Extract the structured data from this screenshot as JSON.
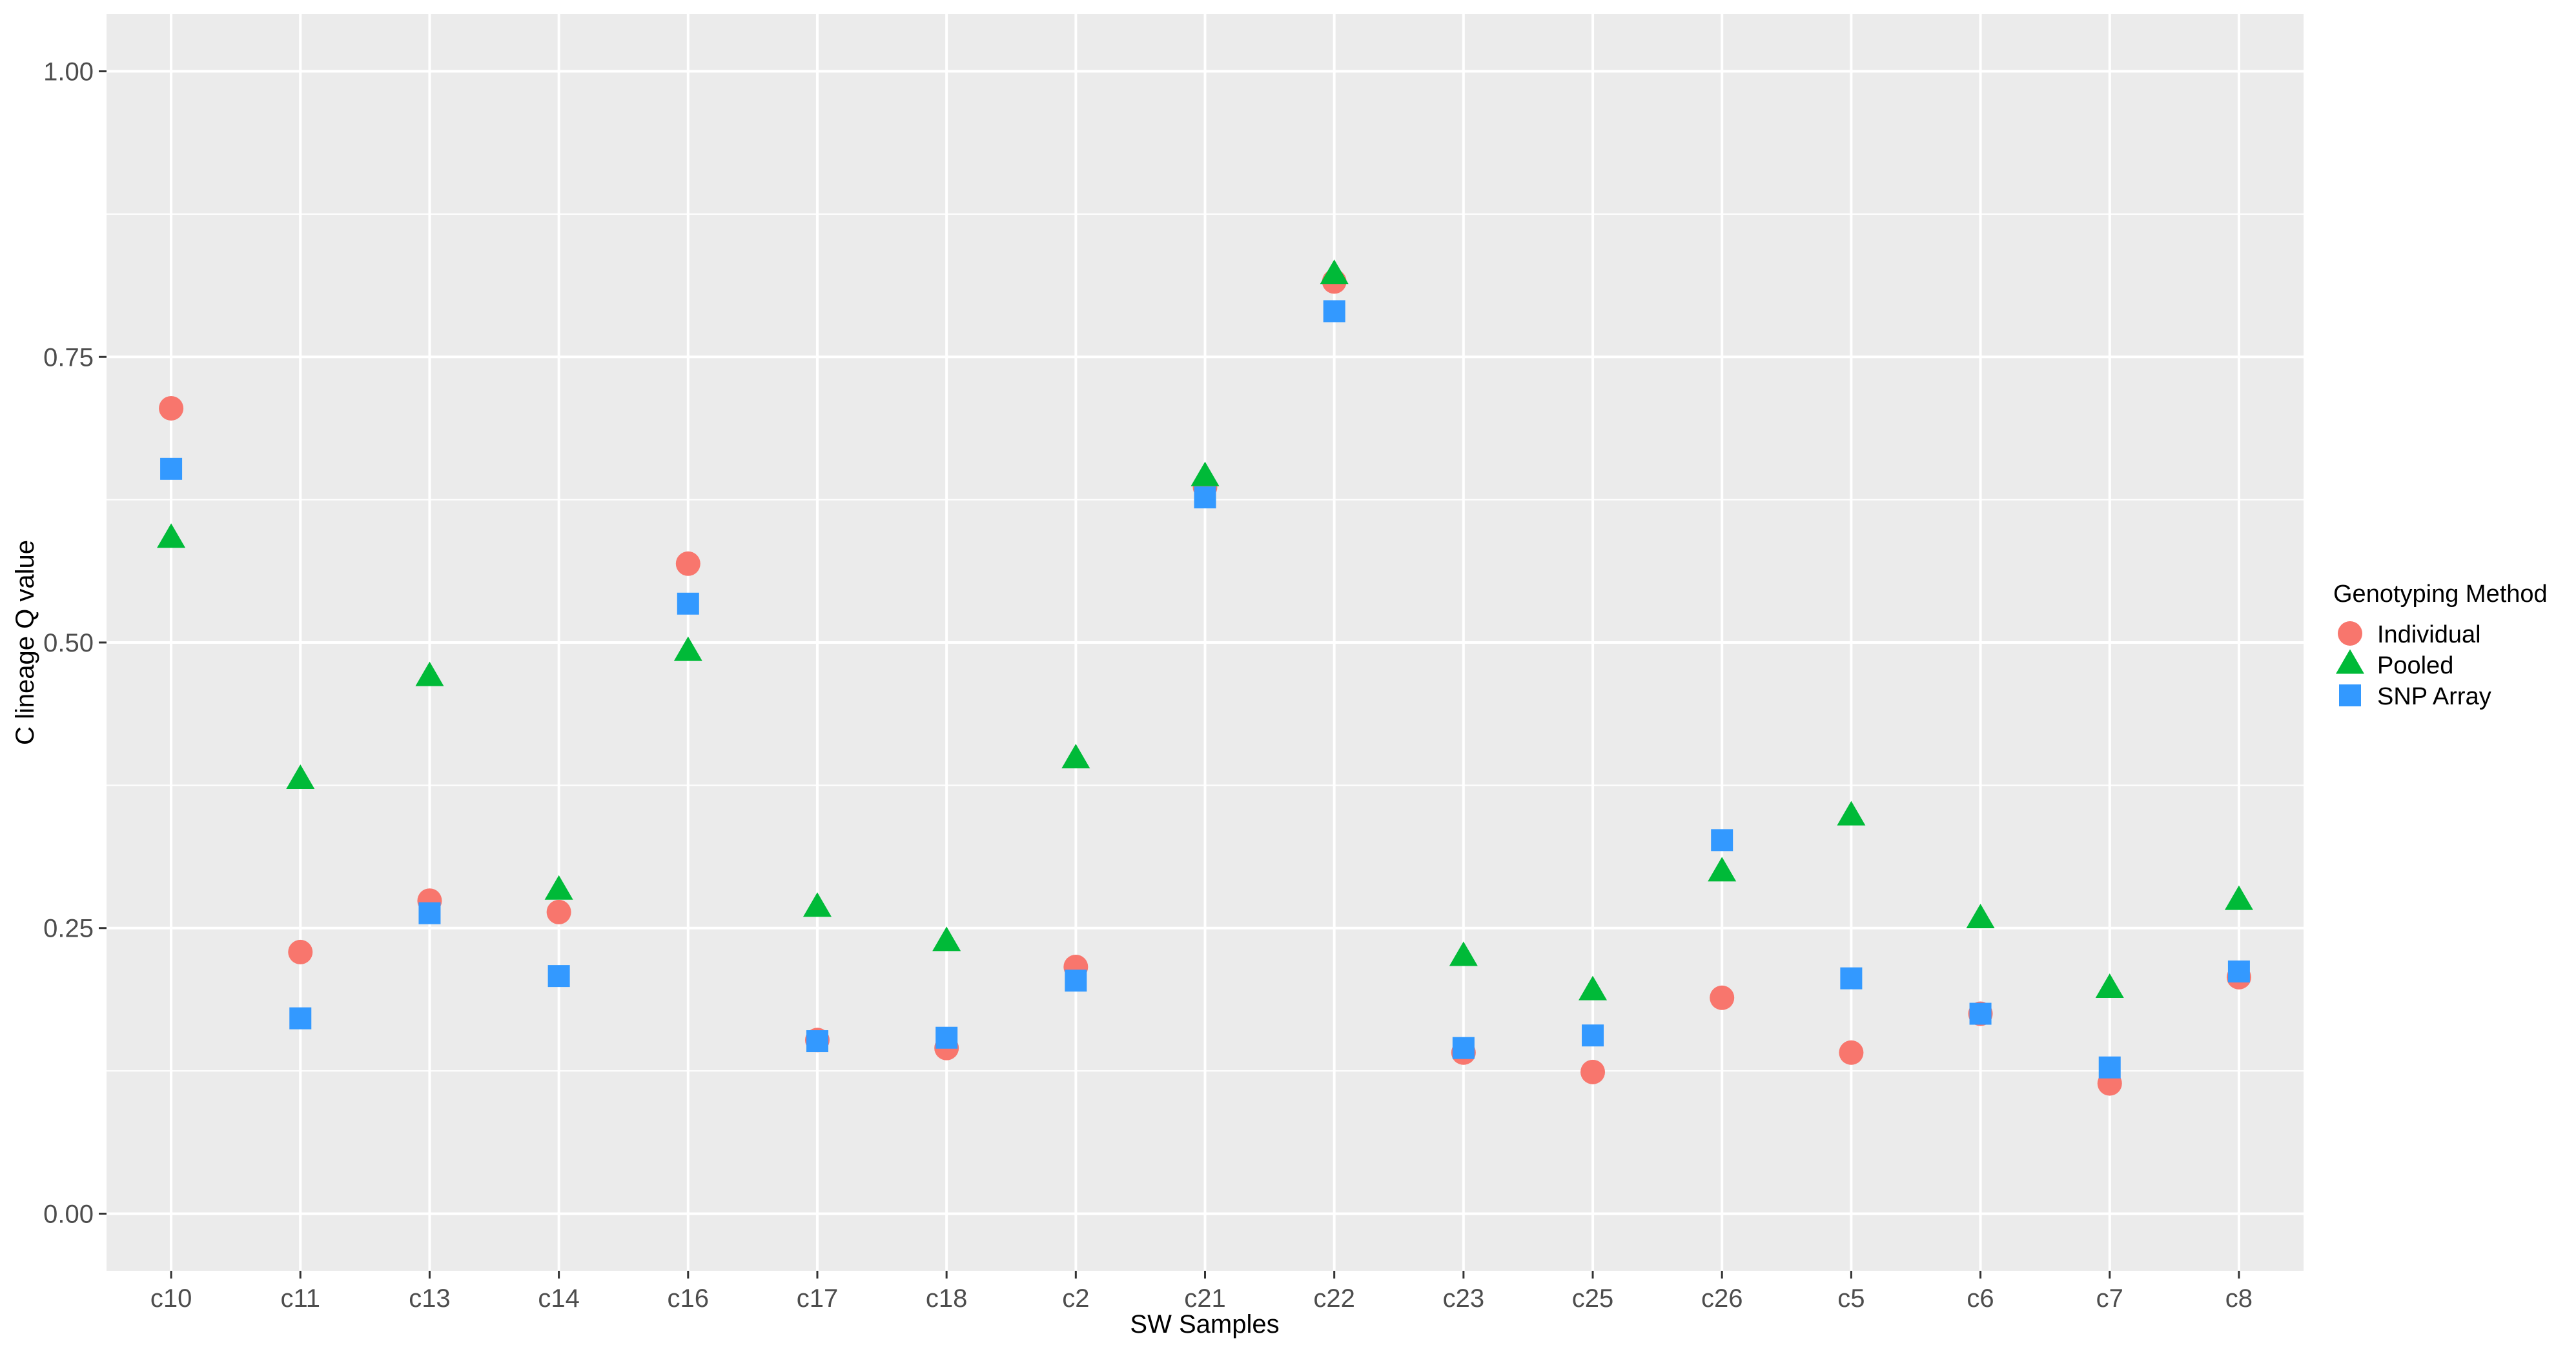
{
  "chart_data": {
    "type": "scatter",
    "xlabel": "SW Samples",
    "ylabel": "C lineage Q value",
    "ylim": [
      -0.05,
      1.05
    ],
    "yticks": [
      0.0,
      0.25,
      0.5,
      0.75,
      1.0
    ],
    "ytick_labels": [
      "0.00",
      "0.25",
      "0.50",
      "0.75",
      "1.00"
    ],
    "categories": [
      "c10",
      "c11",
      "c13",
      "c14",
      "c16",
      "c17",
      "c18",
      "c2",
      "c21",
      "c22",
      "c23",
      "c25",
      "c26",
      "c5",
      "c6",
      "c7",
      "c8"
    ],
    "grid": true,
    "legend": {
      "title": "Genotyping Method",
      "placement": "right"
    },
    "series": [
      {
        "name": "Individual",
        "marker": "circle",
        "color": "#F8766D",
        "values": [
          0.705,
          0.229,
          0.274,
          0.264,
          0.569,
          0.152,
          0.145,
          0.216,
          0.636,
          0.816,
          0.141,
          0.124,
          0.189,
          0.141,
          0.175,
          0.114,
          0.207
        ]
      },
      {
        "name": "Pooled",
        "marker": "triangle",
        "color": "#00BA38",
        "values": [
          0.591,
          0.38,
          0.47,
          0.283,
          0.492,
          0.268,
          0.238,
          0.398,
          0.645,
          0.822,
          0.225,
          0.195,
          0.299,
          0.348,
          0.258,
          0.197,
          0.274
        ]
      },
      {
        "name": "SNP Array",
        "marker": "square",
        "color": "#3399FF",
        "values": [
          0.652,
          0.171,
          0.263,
          0.208,
          0.534,
          0.151,
          0.154,
          0.204,
          0.627,
          0.79,
          0.145,
          0.156,
          0.327,
          0.206,
          0.175,
          0.128,
          0.212
        ]
      }
    ]
  }
}
